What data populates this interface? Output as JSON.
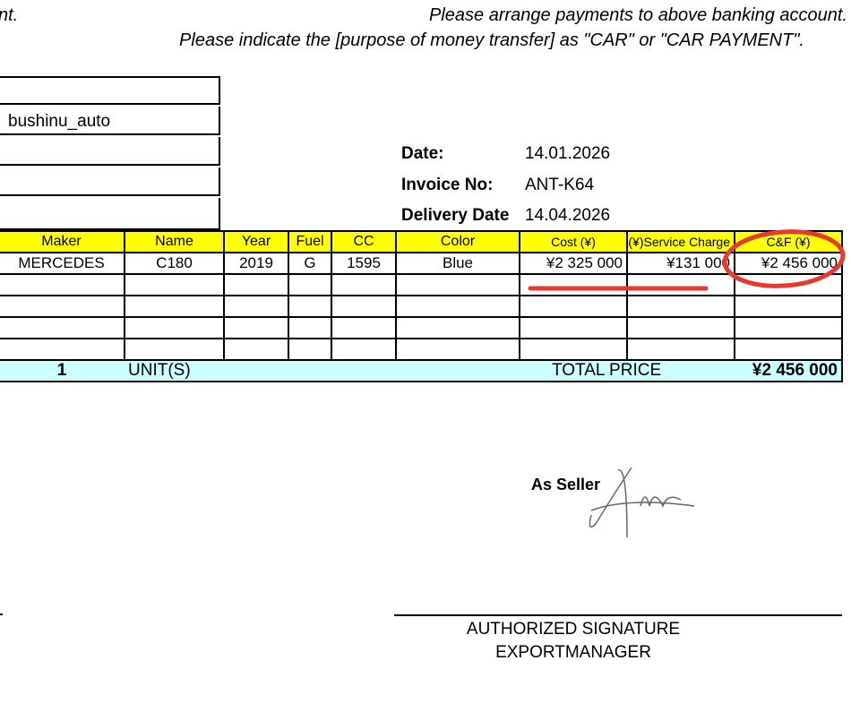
{
  "notes": {
    "left_fragment": "nt.",
    "line1": "Please arrange payments to above banking account.",
    "line2": "Please indicate the [purpose of money transfer] as \"CAR\" or \"CAR PAYMENT\"."
  },
  "buyer_box": [
    "",
    "bushinu_auto",
    "",
    "",
    ""
  ],
  "invoice": {
    "date_label": "Date:",
    "date": "14.01.2026",
    "no_label": "Invoice No:",
    "no": "ANT-K64",
    "delivery_label": "Delivery Date",
    "delivery": "14.04.2026"
  },
  "table": {
    "headers": [
      "Maker",
      "Name",
      "Year",
      "Fuel",
      "CC",
      "Color",
      "Cost (¥)",
      "Service Charge(¥)",
      "C&F (¥)"
    ],
    "rows": [
      [
        "MERCEDES",
        "C180",
        "2019",
        "G",
        "1595",
        "Blue",
        "¥2 325 000",
        "¥131 000",
        "¥2 456 000"
      ]
    ],
    "total": {
      "units": "1",
      "units_label": "UNIT(S)",
      "total_label": "TOTAL PRICE",
      "total": "¥2 456 000"
    }
  },
  "signature": {
    "as_seller": "As Seller",
    "authorized": "AUTHORIZED SIGNATURE",
    "title": "EXPORTMANAGER"
  },
  "annotation_color": "#e8392f"
}
